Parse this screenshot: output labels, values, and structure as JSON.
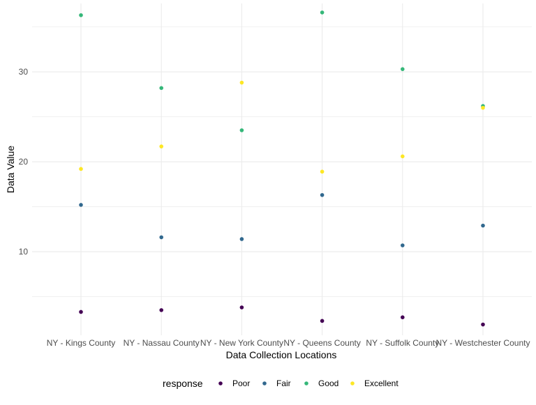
{
  "chart_data": {
    "type": "scatter",
    "title": "",
    "xlabel": "Data Collection Locations",
    "ylabel": "Data Value",
    "categories": [
      "NY - Kings County",
      "NY - Nassau County",
      "NY - New York County",
      "NY - Queens County",
      "NY - Suffolk County",
      "NY - Westchester County"
    ],
    "yticks": [
      10,
      20,
      30
    ],
    "ylim": [
      0.7,
      37.6
    ],
    "grid": true,
    "legend": {
      "title": "response",
      "position": "bottom"
    },
    "series": [
      {
        "name": "Poor",
        "color": "#440154",
        "values": [
          3.3,
          3.5,
          3.8,
          2.3,
          2.7,
          1.9
        ]
      },
      {
        "name": "Fair",
        "color": "#31688E",
        "values": [
          15.2,
          11.6,
          11.4,
          16.3,
          10.7,
          12.9
        ]
      },
      {
        "name": "Good",
        "color": "#35B779",
        "values": [
          36.3,
          28.2,
          23.5,
          36.6,
          30.3,
          26.2
        ]
      },
      {
        "name": "Excellent",
        "color": "#FDE725",
        "values": [
          19.2,
          21.7,
          28.8,
          18.9,
          20.6,
          26.0
        ]
      }
    ]
  }
}
